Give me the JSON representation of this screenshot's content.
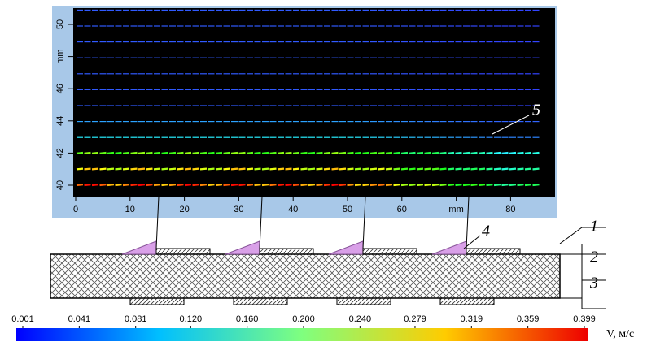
{
  "figure": {
    "plot": {
      "xlim": [
        0,
        88
      ],
      "ylim": [
        39.4,
        51
      ],
      "xticks": [
        0,
        10,
        20,
        30,
        40,
        50,
        60,
        {
          "value": 70,
          "label": "mm"
        },
        80
      ],
      "yticks": [
        40,
        42,
        44,
        46,
        {
          "value": 48,
          "label": "mm"
        },
        50
      ]
    },
    "colorbar": {
      "label": "V, м/с",
      "clim": [
        0.001,
        0.399
      ],
      "ticks": [
        0.001,
        0.041,
        0.081,
        {
          "value": 0.12,
          "label": "0.120"
        },
        {
          "value": 0.16,
          "label": "0.160"
        },
        {
          "value": 0.2,
          "label": "0.200"
        },
        {
          "value": 0.24,
          "label": "0.240"
        },
        0.279,
        0.319,
        0.359,
        0.399
      ]
    },
    "labels": [
      "1",
      "2",
      "3",
      "4",
      "5"
    ]
  }
}
